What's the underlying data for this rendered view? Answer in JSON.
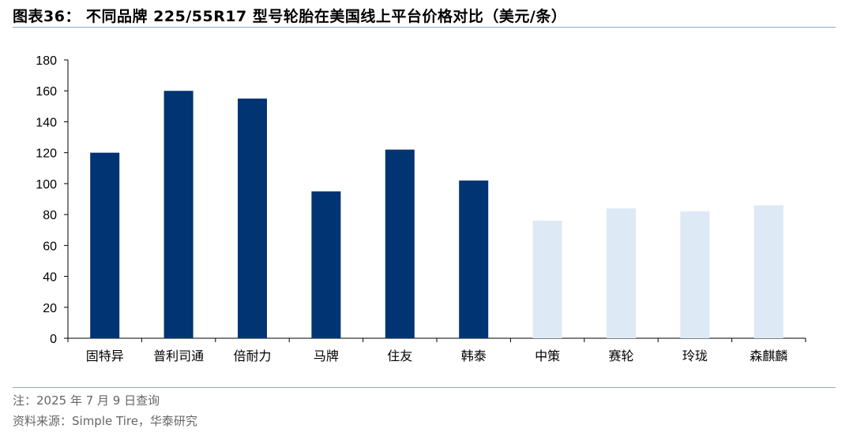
{
  "figure": {
    "title": "图表36：  不同品牌 225/55R17 型号轮胎在美国线上平台价格对比（美元/条）",
    "note": "注：2025 年 7 月 9 日查询",
    "source": "资料来源：Simple Tire，华泰研究"
  },
  "colors": {
    "dark_bar": "#003473",
    "light_bar": "#dde9f5",
    "axis": "#000000",
    "rule": "#8fa9bf"
  },
  "chart_data": {
    "type": "bar",
    "title": "不同品牌 225/55R17 型号轮胎在美国线上平台价格对比（美元/条）",
    "xlabel": "",
    "ylabel": "",
    "ylim": [
      0,
      180
    ],
    "yticks": [
      0,
      20,
      40,
      60,
      80,
      100,
      120,
      140,
      160,
      180
    ],
    "grid": false,
    "categories": [
      "固特异",
      "普利司通",
      "倍耐力",
      "马牌",
      "住友",
      "韩泰",
      "中策",
      "赛轮",
      "玲珑",
      "森麒麟"
    ],
    "values": [
      120,
      160,
      155,
      95,
      122,
      102,
      76,
      84,
      82,
      86
    ],
    "bar_colors": [
      "#003473",
      "#003473",
      "#003473",
      "#003473",
      "#003473",
      "#003473",
      "#dde9f5",
      "#dde9f5",
      "#dde9f5",
      "#dde9f5"
    ]
  }
}
